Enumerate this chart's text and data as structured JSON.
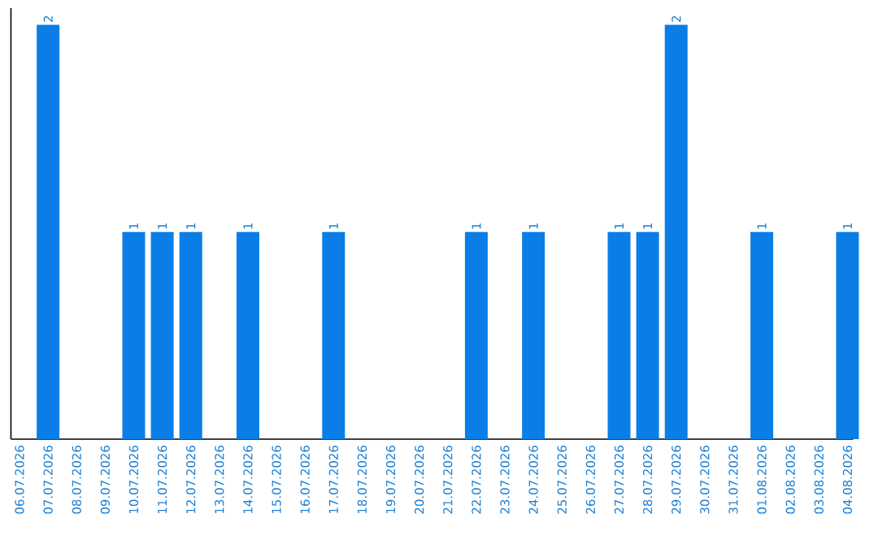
{
  "chart_data": {
    "type": "bar",
    "categories": [
      "06.07.2026",
      "07.07.2026",
      "08.07.2026",
      "09.07.2026",
      "10.07.2026",
      "11.07.2026",
      "12.07.2026",
      "13.07.2026",
      "14.07.2026",
      "15.07.2026",
      "16.07.2026",
      "17.07.2026",
      "18.07.2026",
      "19.07.2026",
      "20.07.2026",
      "21.07.2026",
      "22.07.2026",
      "23.07.2026",
      "24.07.2026",
      "25.07.2026",
      "26.07.2026",
      "27.07.2026",
      "28.07.2026",
      "29.07.2026",
      "30.07.2026",
      "31.07.2026",
      "01.08.2026",
      "02.08.2026",
      "03.08.2026",
      "04.08.2026"
    ],
    "values": [
      null,
      2,
      null,
      null,
      1,
      1,
      1,
      null,
      1,
      null,
      null,
      1,
      null,
      null,
      null,
      null,
      1,
      null,
      1,
      null,
      null,
      1,
      1,
      2,
      null,
      null,
      1,
      null,
      null,
      1
    ],
    "color": "#0a7ee6",
    "ylim": [
      0,
      2.08
    ],
    "data_labels": true
  }
}
